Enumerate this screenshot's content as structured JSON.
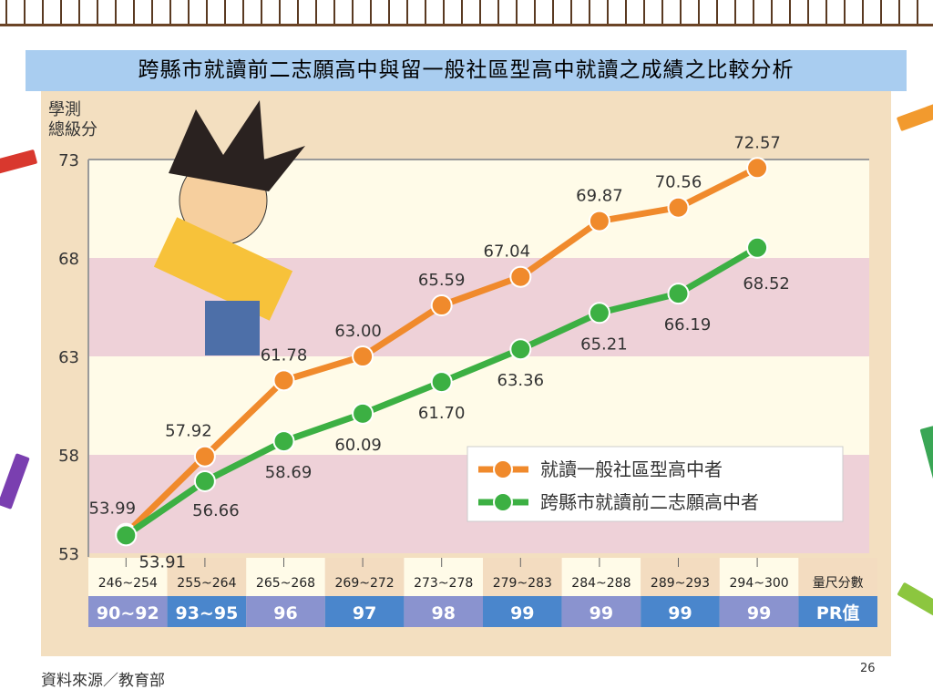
{
  "slide": {
    "title": "跨縣市就讀前二志願高中與留一般社區型高中就讀之成績之比較分析",
    "source": "資料來源／教育部",
    "page_number": "26"
  },
  "chart_data": {
    "type": "line",
    "ylabel": "學測\n總級分",
    "ylabel_lines": [
      "學測",
      "總級分"
    ],
    "ylim": [
      53,
      73
    ],
    "yticks": [
      73,
      68,
      63,
      58,
      53
    ],
    "categories": [
      "246~254",
      "255~264",
      "265~268",
      "269~272",
      "273~278",
      "279~283",
      "284~288",
      "289~293",
      "294~300"
    ],
    "category_row_label": "量尺分數",
    "pr_values": [
      "90~92",
      "93~95",
      "96",
      "97",
      "98",
      "99",
      "99",
      "99",
      "99"
    ],
    "pr_row_label": "PR值",
    "legend_placement": "bottom-right",
    "series": [
      {
        "name": "就讀一般社區型高中者",
        "color": "#f08a2c",
        "values": [
          53.99,
          57.92,
          61.78,
          63.0,
          65.59,
          67.04,
          69.87,
          70.56,
          72.57
        ],
        "labels": [
          "53.99",
          "57.92",
          "61.78",
          "63.00",
          "65.59",
          "67.04",
          "69.87",
          "70.56",
          "72.57"
        ]
      },
      {
        "name": "跨縣市就讀前二志願高中者",
        "color": "#3cb043",
        "values": [
          53.91,
          56.66,
          58.69,
          60.09,
          61.7,
          63.36,
          65.21,
          66.19,
          68.52
        ],
        "labels": [
          "53.91",
          "56.66",
          "58.69",
          "60.09",
          "61.70",
          "63.36",
          "65.21",
          "66.19",
          "68.52"
        ]
      }
    ],
    "band_colors": [
      "#fffbe8",
      "#eed1d8"
    ],
    "pr_colors": [
      "#8a93cf",
      "#4a86cc"
    ]
  }
}
